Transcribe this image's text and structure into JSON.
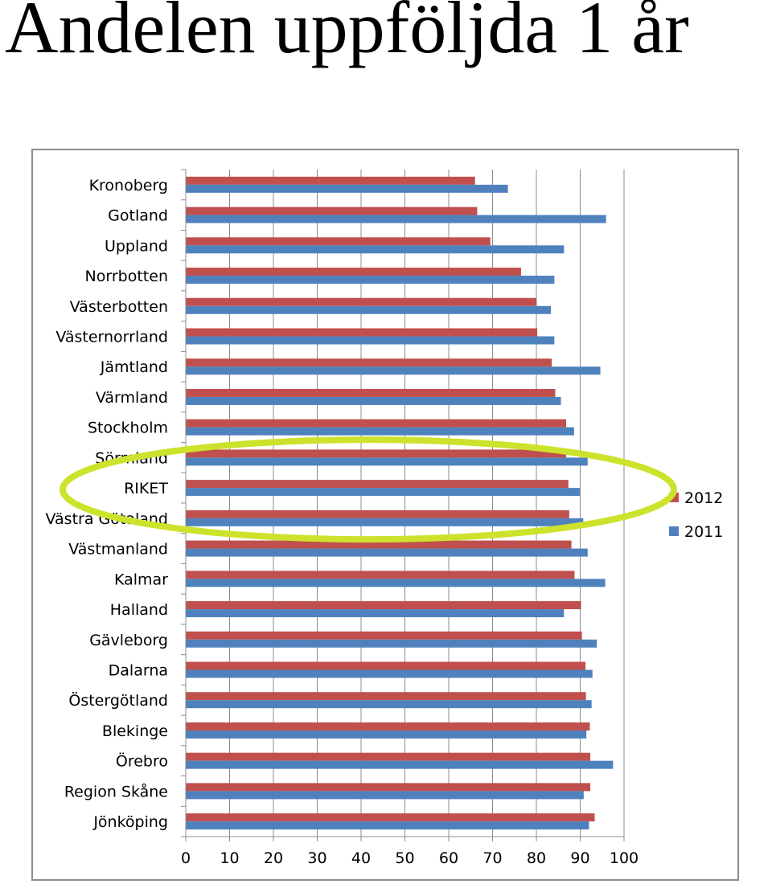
{
  "slide": {
    "title": "Andelen uppföljda 1 år"
  },
  "chart_data": {
    "type": "bar",
    "orientation": "horizontal",
    "categories": [
      "Kronoberg",
      "Gotland",
      "Uppland",
      "Norrbotten",
      "Västerbotten",
      "Västernorrland",
      "Jämtland",
      "Värmland",
      "Stockholm",
      "Sörmland",
      "RIKET",
      "Västra Götaland",
      "Västmanland",
      "Kalmar",
      "Halland",
      "Gävleborg",
      "Dalarna",
      "Östergötland",
      "Blekinge",
      "Örebro",
      "Region Skåne",
      "Jönköping"
    ],
    "series": [
      {
        "name": "2012",
        "color": "#c0504d",
        "values": [
          66,
          66.5,
          69.5,
          76.5,
          80,
          80.2,
          83.5,
          84.3,
          86.8,
          86.8,
          87.3,
          87.5,
          88,
          88.7,
          90.2,
          90.4,
          91.2,
          91.3,
          92.2,
          92.3,
          92.3,
          93.3
        ]
      },
      {
        "name": "2011",
        "color": "#4f81bd",
        "values": [
          73.5,
          95.9,
          86.3,
          84.1,
          83.3,
          84.1,
          94.6,
          85.6,
          88.6,
          91.7,
          89.9,
          90.7,
          91.7,
          95.7,
          86.3,
          93.8,
          92.8,
          92.6,
          91.4,
          97.5,
          90.8,
          92
        ]
      }
    ],
    "xlim": [
      0,
      100
    ],
    "xticks": [
      0,
      10,
      20,
      30,
      40,
      50,
      60,
      70,
      80,
      90,
      100
    ],
    "grid": "vertical",
    "legend": "right",
    "highlight": {
      "category": "RIKET",
      "shape": "ellipse",
      "color": "#cde22c"
    }
  }
}
